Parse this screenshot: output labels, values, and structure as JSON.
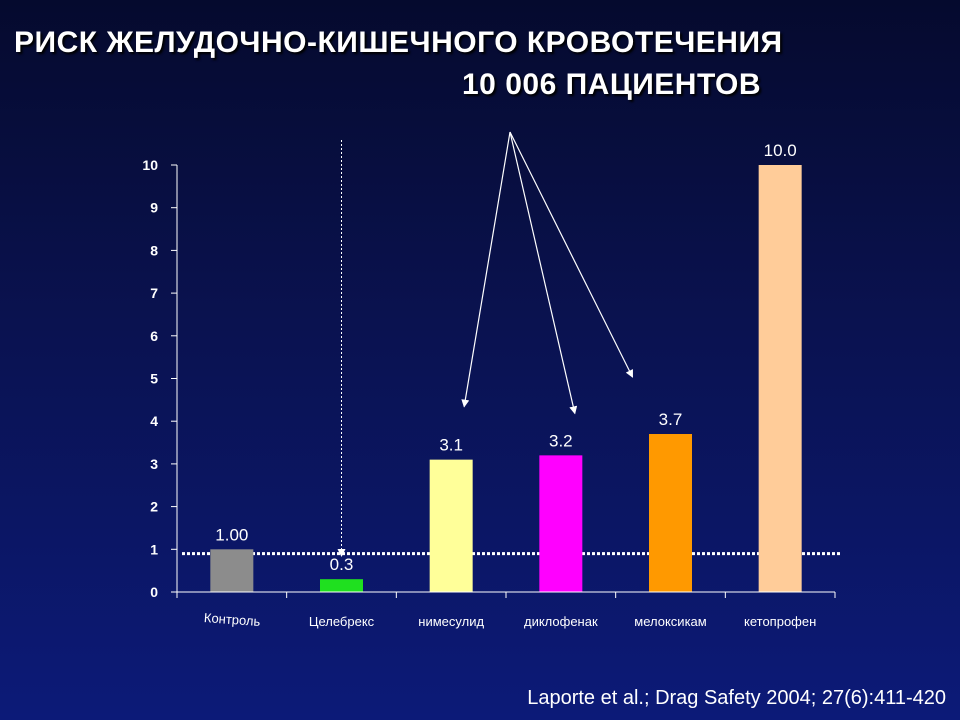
{
  "title_line1": "РИСК ЖЕЛУДОЧНО-КИШЕЧНОГО КРОВОТЕЧЕНИЯ",
  "title_line2": "10 006 ПАЦИЕНТОВ",
  "citation": "Laporte et al.; Drag Safety 2004; 27(6):411-420",
  "chart_data": {
    "type": "bar",
    "categories": [
      "Контроль",
      "Целебрекс",
      "нимесулид",
      "диклофенак",
      "мелоксикам",
      "кетопрофен"
    ],
    "values": [
      1.0,
      0.3,
      3.1,
      3.2,
      3.7,
      10.0
    ],
    "value_labels": [
      "1.00",
      "0.3",
      "3.1",
      "3.2",
      "3.7",
      "10.0"
    ],
    "bar_colors": [
      "#8c8c8c",
      "#1fe01f",
      "#ffff99",
      "#ff00ff",
      "#ff9900",
      "#ffcc99"
    ],
    "ylim": [
      0,
      10
    ],
    "yticks": [
      "0",
      "1",
      "2",
      "3",
      "4",
      "5",
      "6",
      "7",
      "8",
      "9",
      "10"
    ],
    "reference_line": 0.9,
    "grid": false,
    "legend": "none",
    "annotations": {
      "arrows_from_common_point_to": [
        "нимесулид",
        "диклофенак",
        "мелоксикам"
      ],
      "vertical_dotted_arrow_at": "Целебрекс"
    },
    "colors": {
      "axis": "#ffffff",
      "text": "#ffffff",
      "background": "#0a1250"
    }
  }
}
